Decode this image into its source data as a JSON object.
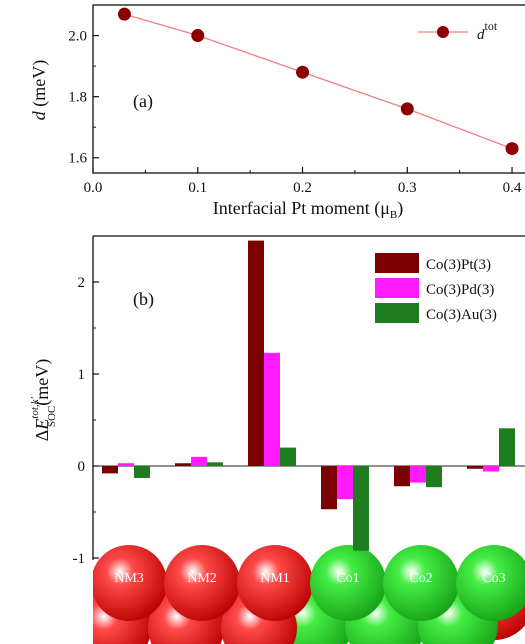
{
  "chart_data": [
    {
      "type": "line",
      "panel_label": "(a)",
      "xlabel": "Interfacial Pt moment (μB)",
      "ylabel": "d (meV)",
      "xlim": [
        0.0,
        0.42
      ],
      "ylim": [
        1.55,
        2.1
      ],
      "xticks": [
        "0.0",
        "0.1",
        "0.2",
        "0.3",
        "0.4"
      ],
      "yticks": [
        "1.6",
        "1.8",
        "2.0"
      ],
      "series": [
        {
          "name": "d^tot",
          "color": "#8b0000",
          "line_color": "#f08080",
          "x": [
            0.03,
            0.1,
            0.2,
            0.3,
            0.4
          ],
          "y": [
            2.07,
            2.0,
            1.88,
            1.76,
            1.63
          ]
        }
      ],
      "legend_position": "top-right"
    },
    {
      "type": "bar",
      "panel_label": "(b)",
      "ylabel": "ΔE_SOC^{tot,k'} (meV)",
      "ylim": [
        -1,
        2.5
      ],
      "yticks": [
        "-1",
        "0",
        "1",
        "2"
      ],
      "categories": [
        "NM3",
        "NM2",
        "NM1",
        "Co1",
        "Co2",
        "Co3"
      ],
      "series": [
        {
          "name": "Co(3)Pt(3)",
          "color": "#7b0000",
          "values": [
            -0.08,
            0.03,
            2.45,
            -0.47,
            -0.22,
            -0.03
          ]
        },
        {
          "name": "Co(3)Pd(3)",
          "color": "#ff1aff",
          "values": [
            0.03,
            0.1,
            1.23,
            -0.36,
            -0.18,
            -0.06
          ]
        },
        {
          "name": "Co(3)Au(3)",
          "color": "#1e7d1e",
          "values": [
            -0.13,
            0.04,
            0.2,
            -0.92,
            -0.23,
            0.41
          ]
        }
      ],
      "legend_position": "top-right",
      "atom_colors": {
        "NM": "#dd1010",
        "Co": "#22cc22"
      }
    }
  ]
}
